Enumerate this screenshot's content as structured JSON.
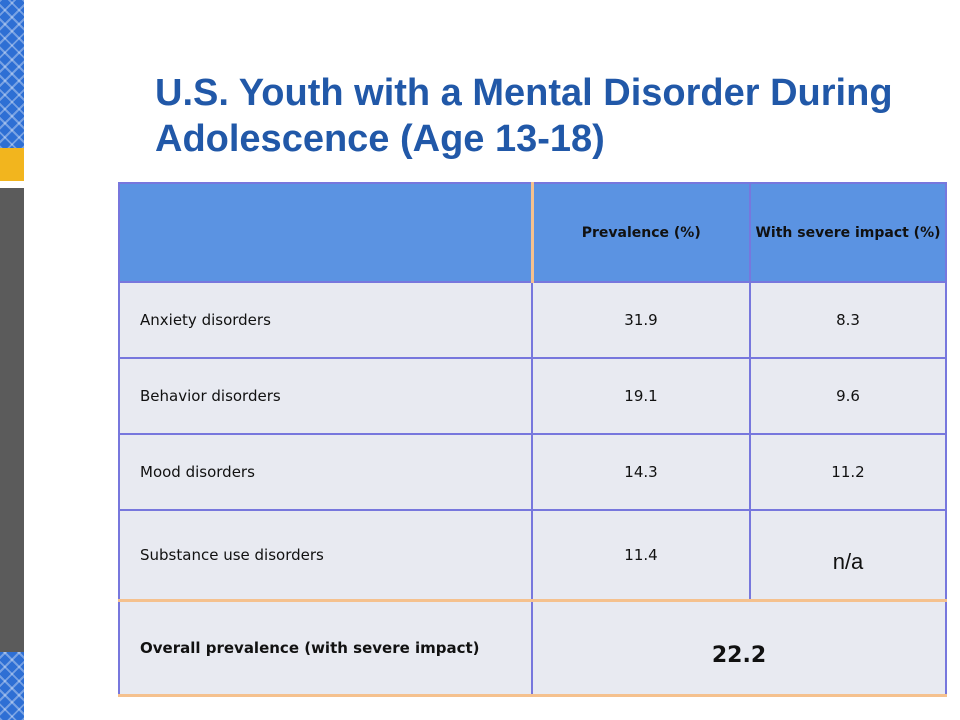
{
  "slide": {
    "title": "U.S. Youth with a Mental Disorder During Adolescence (Age 13-18)"
  },
  "table": {
    "headers": [
      "",
      "Prevalence (%)",
      "With severe impact (%)"
    ],
    "rows": [
      {
        "label": "Anxiety disorders",
        "prevalence": "31.9",
        "severe": "8.3"
      },
      {
        "label": "Behavior disorders",
        "prevalence": "19.1",
        "severe": "9.6"
      },
      {
        "label": "Mood disorders",
        "prevalence": "14.3",
        "severe": "11.2"
      },
      {
        "label": "Substance use disorders",
        "prevalence": "11.4",
        "severe": "n/a"
      }
    ],
    "overall": {
      "label": "Overall prevalence (with severe impact)",
      "value": "22.2"
    }
  },
  "colors": {
    "title": "#2158a8",
    "header_bg": "#5b93e2",
    "cell_bg": "#e8eaf1",
    "accent_gold": "#f2b51e",
    "sidebar_blue": "#2e6fd4",
    "sidebar_gray": "#5b5b5b"
  }
}
